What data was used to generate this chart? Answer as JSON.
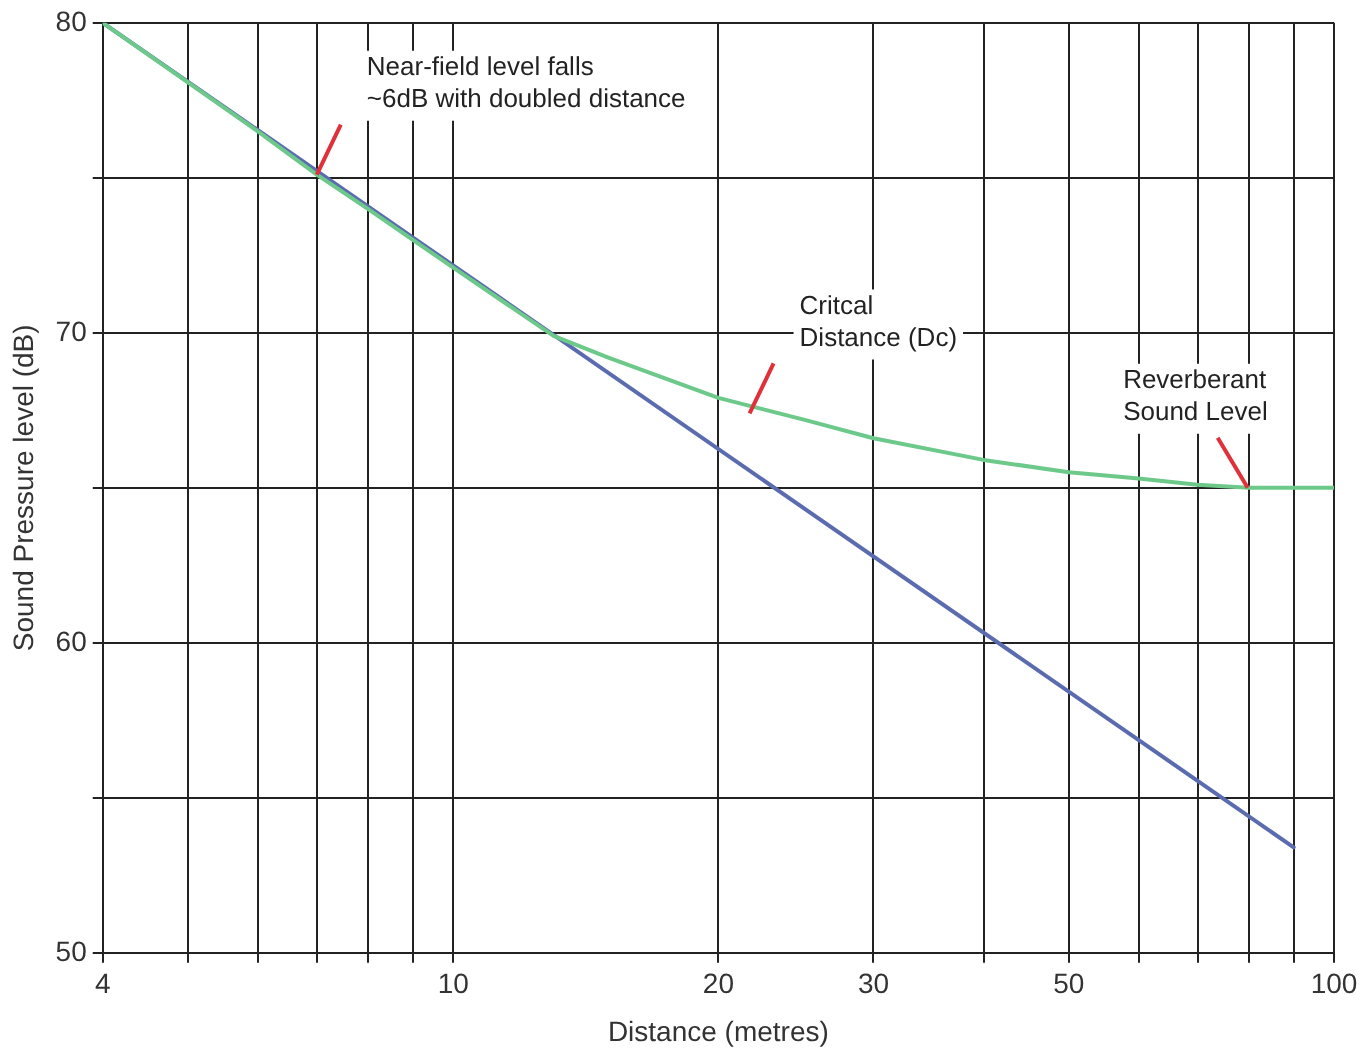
{
  "chart_data": {
    "type": "line",
    "xlabel": "Distance (metres)",
    "ylabel": "Sound Pressure level (dB)",
    "log": "x",
    "xlim": [
      4,
      100
    ],
    "ylim": [
      50,
      80
    ],
    "xticks": [
      4,
      {
        "value": 5,
        "label": null
      },
      {
        "value": 6,
        "label": null
      },
      {
        "value": 7,
        "label": null
      },
      {
        "value": 8,
        "label": null
      },
      {
        "value": 9,
        "label": null
      },
      10,
      20,
      30,
      {
        "value": 40,
        "label": null
      },
      50,
      {
        "value": 60,
        "label": null
      },
      {
        "value": 70,
        "label": null
      },
      {
        "value": 80,
        "label": null
      },
      {
        "value": 90,
        "label": null
      },
      100
    ],
    "yticks": [
      50,
      {
        "value": 55,
        "label": null
      },
      60,
      {
        "value": 65,
        "label": null
      },
      70,
      {
        "value": 75,
        "label": null
      },
      80
    ],
    "grid": true,
    "legend": false,
    "marker": "none",
    "line_style": "solid",
    "series": [
      {
        "color": "#6cc98a",
        "x": [
          4,
          6,
          7,
          8,
          10,
          13,
          15,
          20,
          25,
          30,
          40,
          50,
          60,
          70,
          80,
          100
        ],
        "values": [
          80,
          76.5,
          75.1,
          74,
          72.1,
          69.9,
          69.2,
          67.9,
          67.2,
          66.6,
          65.9,
          65.5,
          65.3,
          65.1,
          65,
          65
        ]
      },
      {
        "color": "#5a6bb0",
        "x": [
          4,
          90
        ],
        "values": [
          80,
          53.4
        ]
      }
    ],
    "annotations": [
      {
        "text": "Near-field level falls\n~6dB with doubled distance",
        "x": 7,
        "y": 75.1
      },
      {
        "text": "Critcal\nDistance (Dc)",
        "x": 21.7,
        "y": 67.4
      },
      {
        "text": "Reverberant\nSound Level",
        "x": 79.8,
        "y": 65
      }
    ]
  }
}
